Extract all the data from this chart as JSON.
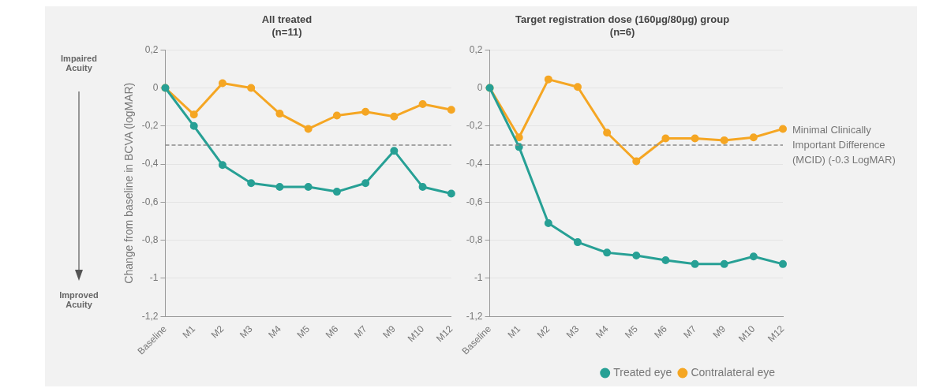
{
  "chart_data": [
    {
      "type": "line",
      "title": "All treated",
      "subtitle": "(n=11)",
      "ylabel": "Change from baseline in BCVA (logMAR)",
      "annotations": [
        "Impaired Acuity",
        "Improved Acuity"
      ],
      "categories": [
        "Baseline",
        "M1",
        "M2",
        "M3",
        "M4",
        "M5",
        "M6",
        "M7",
        "M9",
        "M10",
        "M12"
      ],
      "series": [
        {
          "color": "#27a095",
          "values": [
            0,
            -0.2,
            -0.405,
            -0.5,
            -0.52,
            -0.52,
            -0.545,
            -0.5,
            -0.33,
            -0.52,
            -0.555
          ]
        },
        {
          "color": "#f5a623",
          "values": [
            0,
            -0.14,
            0.025,
            0,
            -0.135,
            -0.215,
            -0.145,
            -0.125,
            -0.15,
            -0.085,
            -0.115
          ]
        }
      ],
      "ylim": [
        -1.2,
        0.2
      ],
      "yticks": [
        {
          "value": -1.2,
          "label": "-1,2"
        },
        {
          "value": -1,
          "label": "-1"
        },
        {
          "value": -0.8,
          "label": "-0,8"
        },
        {
          "value": -0.6,
          "label": "-0,6"
        },
        {
          "value": -0.4,
          "label": "-0,4"
        },
        {
          "value": -0.2,
          "label": "-0,2"
        },
        0,
        {
          "value": 0.2,
          "label": "0,2"
        }
      ],
      "ref_lines": [
        {
          "axis": "y",
          "value": -0.3,
          "color": "#8c8c8c",
          "line_style": "dashed"
        }
      ],
      "grid": "y",
      "legend": false,
      "marker": "circle",
      "line_style": "solid"
    },
    {
      "type": "line",
      "title": "Target registration dose (160µg/80µg) group",
      "subtitle": "(n=6)",
      "categories": [
        "Baseline",
        "M1",
        "M2",
        "M3",
        "M4",
        "M5",
        "M6",
        "M7",
        "M9",
        "M10",
        "M12"
      ],
      "series": [
        {
          "name": "Treated eye",
          "color": "#27a095",
          "values": [
            0,
            -0.31,
            -0.71,
            -0.81,
            -0.865,
            -0.88,
            -0.905,
            -0.925,
            -0.925,
            -0.885,
            -0.925
          ]
        },
        {
          "name": "Contralateral eye",
          "color": "#f5a623",
          "values": [
            0,
            -0.26,
            0.045,
            0.005,
            -0.235,
            -0.385,
            -0.265,
            -0.265,
            -0.275,
            -0.26,
            -0.215
          ]
        }
      ],
      "ylim": [
        -1.2,
        0.2
      ],
      "yticks": [
        {
          "value": -1.2,
          "label": "-1,2"
        },
        {
          "value": -1,
          "label": "-1"
        },
        {
          "value": -0.8,
          "label": "-0,8"
        },
        {
          "value": -0.6,
          "label": "-0,6"
        },
        {
          "value": -0.4,
          "label": "-0,4"
        },
        {
          "value": -0.2,
          "label": "-0,2"
        },
        0,
        {
          "value": 0.2,
          "label": "0,2"
        }
      ],
      "ref_lines": [
        {
          "axis": "y",
          "value": -0.3,
          "label": "Minimal Clinically Important Difference (MCID) (-0.3 LogMAR)",
          "color": "#8c8c8c",
          "line_style": "dashed"
        }
      ],
      "grid": "y",
      "legend": "bottom right",
      "marker": "circle",
      "line_style": "solid"
    }
  ]
}
